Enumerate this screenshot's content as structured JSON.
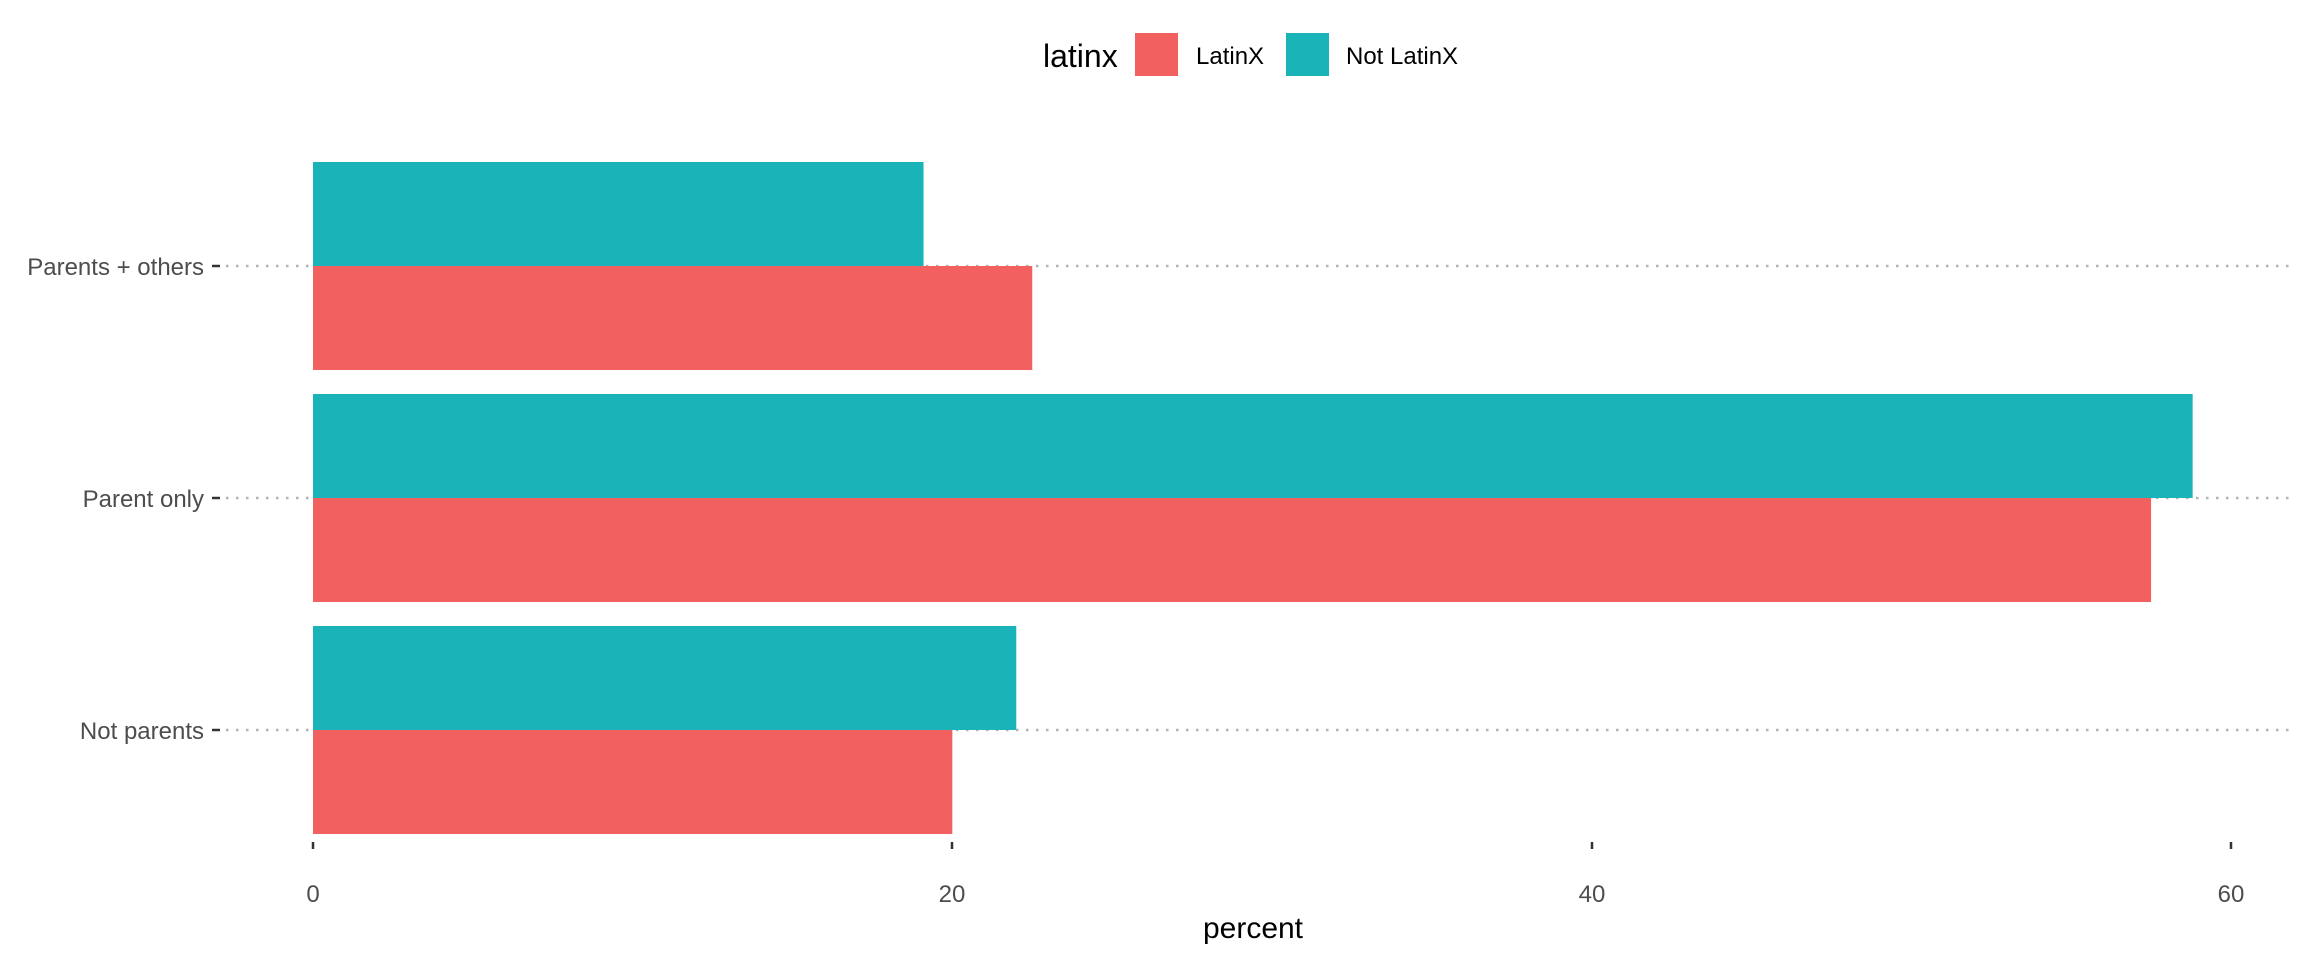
{
  "chart_data": {
    "type": "bar",
    "orientation": "horizontal",
    "categories": [
      "Parents + others",
      "Parent only",
      "Not parents"
    ],
    "series": [
      {
        "name": "LatinX",
        "color": "#F26160",
        "values": [
          22.5,
          57.5,
          20.0
        ]
      },
      {
        "name": "Not LatinX",
        "color": "#1AB3B8",
        "values": [
          19.1,
          58.8,
          22.0
        ]
      }
    ],
    "xlabel": "percent",
    "ylabel": "",
    "xlim": [
      0,
      60
    ],
    "xticks": [
      0,
      20,
      40,
      60
    ],
    "grid": "dotted horizontal lines at categories",
    "legend": {
      "title": "latinx",
      "placement": "top"
    }
  }
}
